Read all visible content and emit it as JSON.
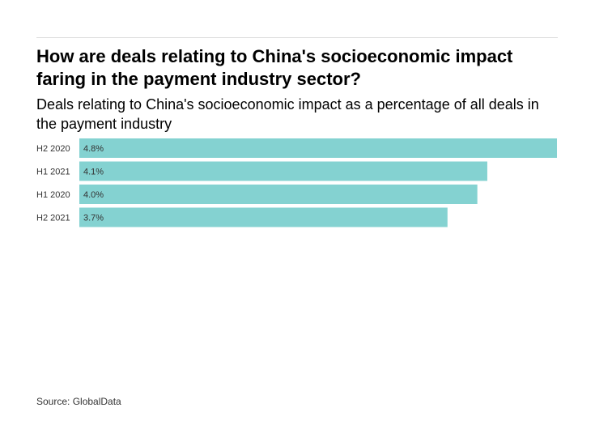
{
  "title": "How are deals relating to China's socioeconomic impact faring in the payment industry sector?",
  "subtitle": "Deals relating to China's socioeconomic impact as a percentage of all deals in the payment industry",
  "source": "Source: GlobalData",
  "colors": {
    "bar": "#84d2d1",
    "rule": "#dddddd"
  },
  "chart_data": {
    "type": "bar",
    "orientation": "horizontal",
    "categories": [
      "H2 2020",
      "H1 2021",
      "H1 2020",
      "H2 2021"
    ],
    "values": [
      4.8,
      4.1,
      4.0,
      3.7
    ],
    "value_labels": [
      "4.8%",
      "4.1%",
      "4.0%",
      "3.7%"
    ],
    "xlim": [
      0,
      4.8
    ],
    "grid": false,
    "legend": "none"
  }
}
